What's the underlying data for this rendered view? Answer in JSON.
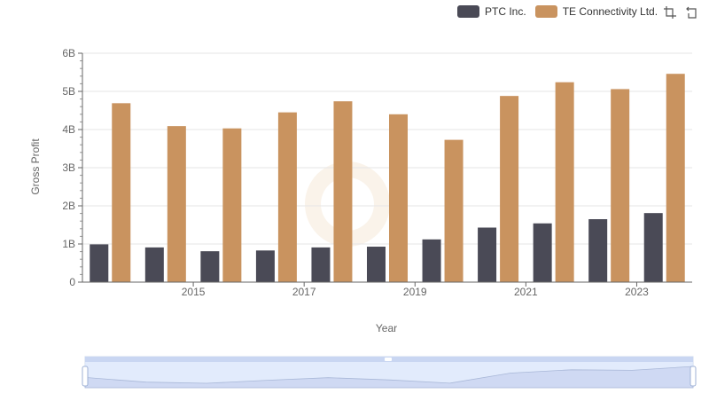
{
  "legend": {
    "series_a": "PTC Inc.",
    "series_b": "TE Connectivity Ltd."
  },
  "toolbox": {
    "zoom_icon": "zoom-icon",
    "restore_icon": "restore-icon"
  },
  "colors": {
    "series_a": "#4a4a56",
    "series_b": "#c9935f"
  },
  "chart_data": {
    "type": "bar",
    "title": "",
    "xlabel": "Year",
    "ylabel": "Gross Profit",
    "x": [
      2014,
      2015,
      2016,
      2017,
      2018,
      2019,
      2020,
      2021,
      2022,
      2023,
      2024
    ],
    "x_tick_labels": [
      "2015",
      "2017",
      "2019",
      "2021",
      "2023"
    ],
    "y_tick_labels": [
      "0",
      "1B",
      "2B",
      "3B",
      "4B",
      "5B",
      "6B"
    ],
    "ylim": [
      0,
      6000000000
    ],
    "grid": true,
    "legend_position": "top-right",
    "series": [
      {
        "name": "PTC Inc.",
        "values": [
          990000000,
          910000000,
          810000000,
          830000000,
          910000000,
          930000000,
          1120000000,
          1430000000,
          1540000000,
          1650000000,
          1810000000
        ]
      },
      {
        "name": "TE Connectivity Ltd.",
        "values": [
          4690000000,
          4090000000,
          4030000000,
          4450000000,
          4740000000,
          4400000000,
          3730000000,
          4880000000,
          5240000000,
          5060000000,
          5460000000
        ]
      }
    ]
  }
}
